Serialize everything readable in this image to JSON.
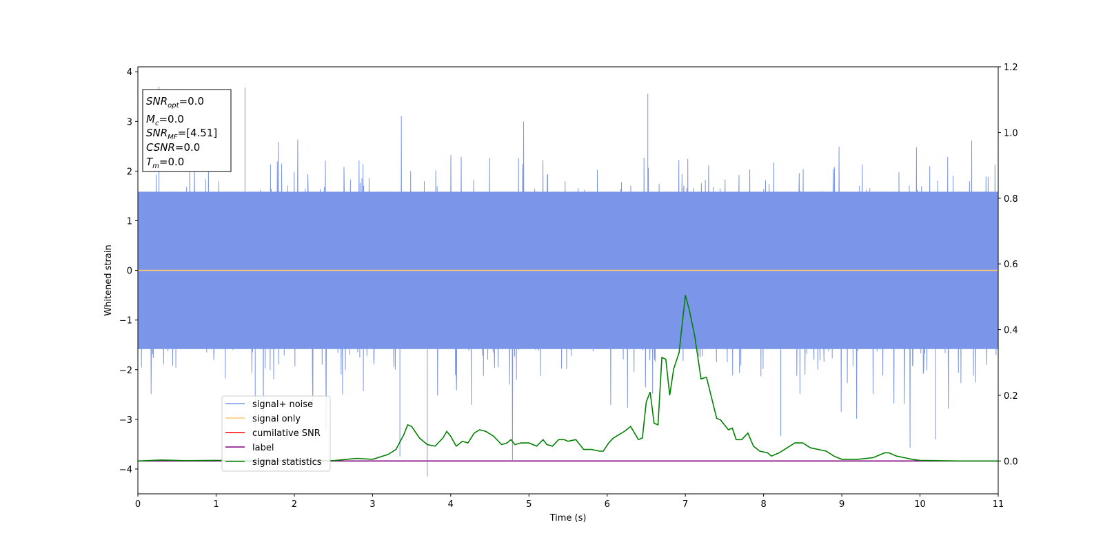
{
  "chart_data": {
    "type": "line",
    "xlabel": "Time (s)",
    "ylabel": "Whitened strain",
    "xlim": [
      0,
      11
    ],
    "ylim_left": [
      -4.5,
      4.1
    ],
    "ylim_right": [
      -0.1,
      1.2
    ],
    "x_ticks": [
      "0",
      "1",
      "2",
      "3",
      "4",
      "5",
      "6",
      "7",
      "8",
      "9",
      "10",
      "11"
    ],
    "y_left_ticks": [
      "4",
      "3",
      "2",
      "1",
      "0",
      "−1",
      "−2",
      "−3",
      "−4"
    ],
    "y_right_ticks": [
      "1.2",
      "1.0",
      "0.8",
      "0.6",
      "0.4",
      "0.2",
      "0.0"
    ],
    "legend": {
      "placement": "lower-left",
      "entries": [
        {
          "label": "signal+ noise",
          "color": "#7b96e8"
        },
        {
          "label": "signal only",
          "color": "#ffc56f"
        },
        {
          "label": "cumilative SNR",
          "color": "#ff0000"
        },
        {
          "label": "label",
          "color": "#800080"
        },
        {
          "label": "signal statistics",
          "color": "#008000"
        }
      ]
    },
    "annotation_box": {
      "placement": "top-left",
      "lines": [
        {
          "main": "SNR",
          "sub": "opt",
          "value": "=0.0"
        },
        {
          "main": "M",
          "sub": "c",
          "value": "=0.0"
        },
        {
          "main": "SNR",
          "sub": "MF",
          "value": "=[4.51]"
        },
        {
          "main": "CSNR",
          "sub": "",
          "value": "=0.0"
        },
        {
          "main": "T",
          "sub": "m",
          "value": "=0.0"
        }
      ]
    },
    "series": [
      {
        "name": "signal+ noise",
        "axis": "left",
        "color": "#7b96e8",
        "description": "whitened noise band",
        "typical_range": [
          -2.2,
          2.2
        ],
        "max": 3.7,
        "min": -4.15,
        "spikes": [
          [
            0.27,
            3.7
          ],
          [
            1.37,
            3.68
          ],
          [
            6.52,
            3.56
          ],
          [
            3.7,
            -4.15
          ],
          [
            3.35,
            -3.75
          ],
          [
            1.5,
            -3.7
          ],
          [
            10.2,
            -3.4
          ],
          [
            8.22,
            -3.33
          ]
        ]
      },
      {
        "name": "signal only",
        "axis": "left",
        "color": "#ffc56f",
        "x": [
          0,
          11
        ],
        "y": [
          0,
          0
        ]
      },
      {
        "name": "label",
        "axis": "right",
        "color": "#800080",
        "x": [
          0,
          11
        ],
        "y": [
          0,
          0
        ]
      },
      {
        "name": "signal statistics",
        "axis": "right",
        "color": "#008000",
        "x": [
          0,
          0.3,
          0.6,
          1.0,
          1.5,
          2.0,
          2.5,
          2.8,
          3.0,
          3.2,
          3.3,
          3.4,
          3.45,
          3.5,
          3.6,
          3.7,
          3.8,
          3.9,
          3.95,
          4.0,
          4.07,
          4.15,
          4.22,
          4.3,
          4.37,
          4.45,
          4.55,
          4.65,
          4.72,
          4.77,
          4.82,
          4.9,
          5.0,
          5.1,
          5.18,
          5.23,
          5.3,
          5.38,
          5.45,
          5.5,
          5.6,
          5.7,
          5.8,
          5.9,
          5.95,
          6.02,
          6.08,
          6.15,
          6.22,
          6.3,
          6.4,
          6.45,
          6.5,
          6.55,
          6.6,
          6.65,
          6.7,
          6.75,
          6.8,
          6.85,
          6.92,
          7.0,
          7.05,
          7.12,
          7.2,
          7.27,
          7.4,
          7.45,
          7.55,
          7.6,
          7.65,
          7.72,
          7.8,
          7.87,
          7.95,
          8.05,
          8.1,
          8.2,
          8.3,
          8.4,
          8.5,
          8.6,
          8.7,
          8.8,
          8.9,
          9.0,
          9.2,
          9.4,
          9.5,
          9.55,
          9.6,
          9.7,
          9.8,
          9.9,
          10.0,
          10.5,
          11.0
        ],
        "y": [
          0.0,
          0.003,
          0.001,
          0.002,
          0.001,
          0.002,
          0.001,
          0.008,
          0.005,
          0.02,
          0.035,
          0.08,
          0.11,
          0.105,
          0.07,
          0.05,
          0.045,
          0.07,
          0.09,
          0.075,
          0.045,
          0.06,
          0.055,
          0.085,
          0.095,
          0.09,
          0.075,
          0.05,
          0.055,
          0.065,
          0.05,
          0.055,
          0.055,
          0.045,
          0.065,
          0.05,
          0.045,
          0.065,
          0.065,
          0.06,
          0.065,
          0.035,
          0.035,
          0.03,
          0.03,
          0.055,
          0.07,
          0.08,
          0.09,
          0.105,
          0.065,
          0.07,
          0.18,
          0.21,
          0.115,
          0.11,
          0.315,
          0.31,
          0.2,
          0.28,
          0.33,
          0.505,
          0.46,
          0.38,
          0.25,
          0.255,
          0.13,
          0.125,
          0.095,
          0.1,
          0.065,
          0.065,
          0.085,
          0.045,
          0.03,
          0.025,
          0.015,
          0.025,
          0.04,
          0.055,
          0.055,
          0.04,
          0.035,
          0.03,
          0.015,
          0.005,
          0.005,
          0.01,
          0.02,
          0.025,
          0.025,
          0.015,
          0.01,
          0.005,
          0.002,
          0.0,
          0.0
        ]
      }
    ]
  }
}
